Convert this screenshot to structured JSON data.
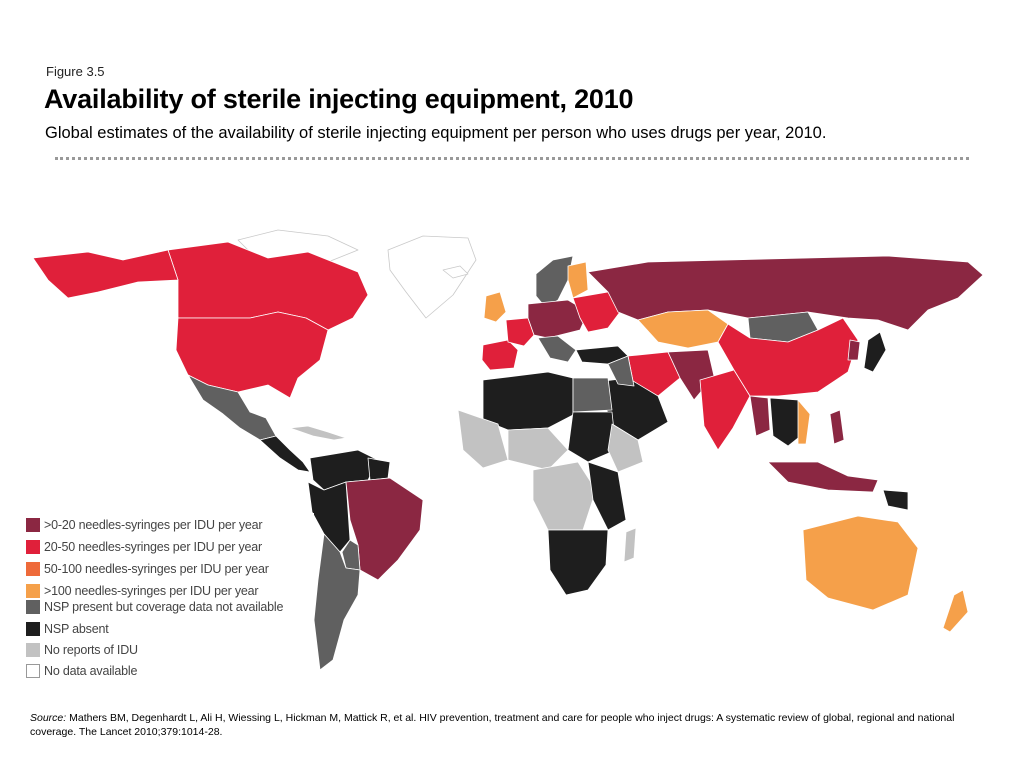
{
  "figure": {
    "label": "Figure 3.5",
    "title": "Availability of sterile injecting equipment, 2010",
    "subtitle": "Global estimates of the availability of sterile injecting equipment per person who uses drugs per year, 2010."
  },
  "legend": [
    {
      "label": ">0-20 needles-syringes per IDU per year",
      "color": "#8b2742"
    },
    {
      "label": "20-50 needles-syringes per IDU per year",
      "color": "#e0203a"
    },
    {
      "label": "50-100 needles-syringes per IDU per year",
      "color": "#ee6a3a"
    },
    {
      "label": ">100 needles-syringes per IDU per year",
      "color": "#f5a04a"
    },
    {
      "label": "NSP present but coverage data not available",
      "color": "#606060"
    },
    {
      "label": "NSP absent",
      "color": "#1e1e1e"
    },
    {
      "label": "No reports of IDU",
      "color": "#c2c2c2"
    },
    {
      "label": "No data available",
      "color": "#ffffff"
    }
  ],
  "source": {
    "prefix": "Source:",
    "text": "Mathers BM, Degenhardt L, Ali H, Wiessing L, Hickman M, Mattick R, et al. HIV prevention, treatment and care for people who inject drugs: A systematic review of global, regional and national coverage. The Lancet 2010;379:1014-28."
  }
}
